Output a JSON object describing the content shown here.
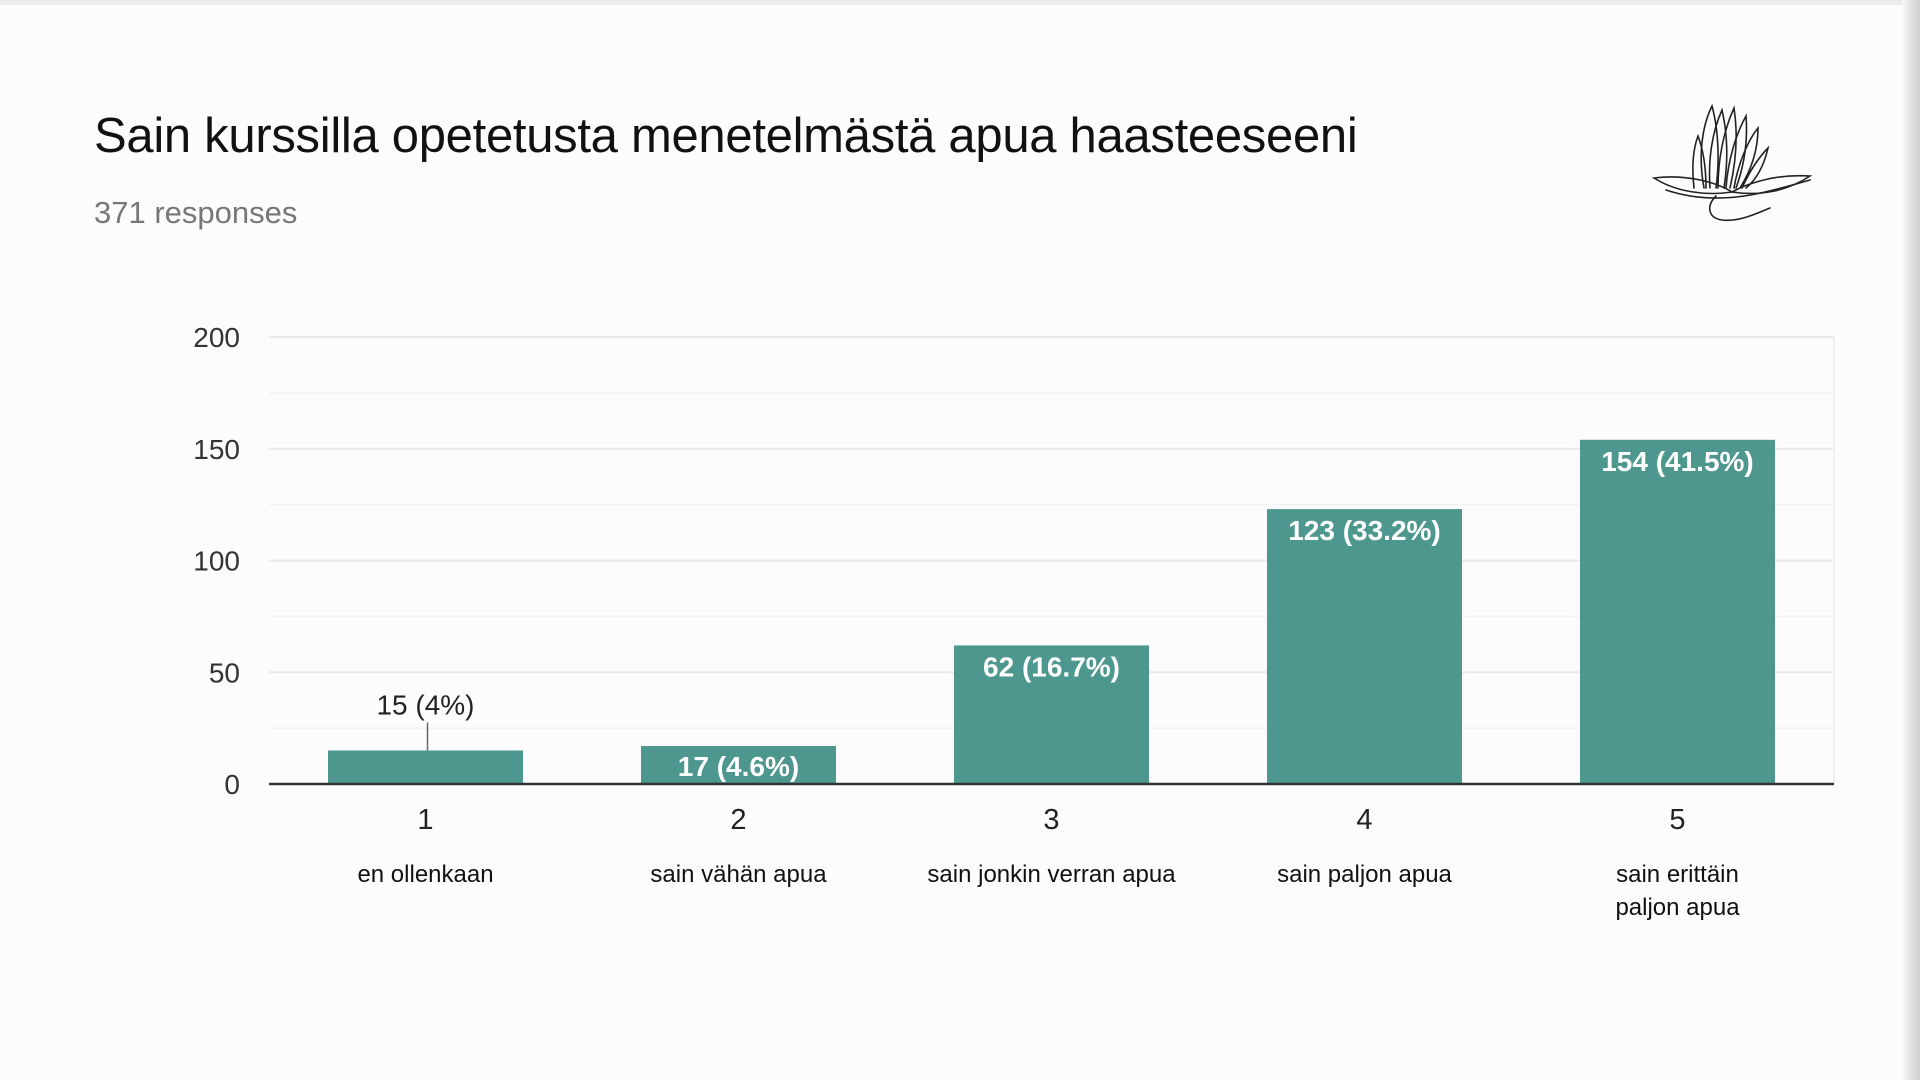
{
  "header": {
    "title": "Sain kurssilla opetetusta menetelmästä apua haasteeseeni",
    "responses": "371 responses"
  },
  "logo": {
    "icon": "lotus-logo-icon"
  },
  "colors": {
    "bar": "#4d978f",
    "axis": "#333333",
    "grid": "#e8e8e8",
    "background": "#fdfcfd"
  },
  "chart_data": {
    "type": "bar",
    "title": "Sain kurssilla opetetusta menetelmästä apua haasteeseeni",
    "categories": [
      "1",
      "2",
      "3",
      "4",
      "5"
    ],
    "category_descriptions": [
      "en  ollenkaan",
      "sain vähän apua",
      "sain jonkin verran apua",
      "sain paljon apua",
      "sain erittäin paljon apua"
    ],
    "values": [
      15,
      17,
      62,
      123,
      154
    ],
    "data_labels": [
      "15 (4%)",
      "17 (4.6%)",
      "62 (16.7%)",
      "123 (33.2%)",
      "154 (41.5%)"
    ],
    "y_ticks": [
      0,
      50,
      100,
      150,
      200
    ],
    "ylim": [
      0,
      200
    ],
    "grid": true,
    "legend": "none",
    "xlabel": "",
    "ylabel": ""
  }
}
